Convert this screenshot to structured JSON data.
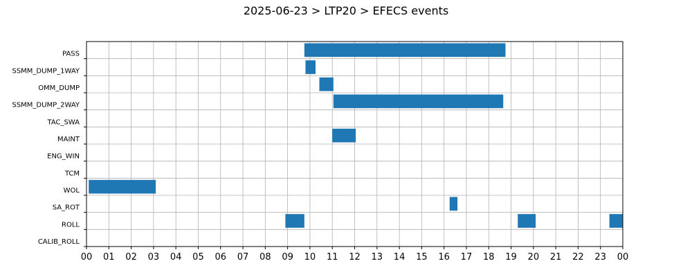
{
  "chart_data": {
    "type": "gantt",
    "title": "2025-06-23 > LTP20 > EFECS events",
    "xlabel": "",
    "ylabel": "",
    "x_ticks": [
      "00",
      "01",
      "02",
      "03",
      "04",
      "05",
      "06",
      "07",
      "08",
      "09",
      "10",
      "11",
      "12",
      "13",
      "14",
      "15",
      "16",
      "17",
      "18",
      "19",
      "20",
      "21",
      "22",
      "23",
      "00"
    ],
    "xlim_hours": [
      0,
      24
    ],
    "grid": true,
    "bar_color": "#1f77b4",
    "categories": [
      "PASS",
      "SSMM_DUMP_1WAY",
      "OMM_DUMP",
      "SSMM_DUMP_2WAY",
      "TAC_SWA",
      "MAINT",
      "ENG_WIN",
      "TCM",
      "WOL",
      "SA_ROT",
      "ROLL",
      "CALIB_ROLL"
    ],
    "events": [
      {
        "category": "PASS",
        "start_hour": 9.75,
        "end_hour": 18.75
      },
      {
        "category": "SSMM_DUMP_1WAY",
        "start_hour": 9.8,
        "end_hour": 10.25
      },
      {
        "category": "OMM_DUMP",
        "start_hour": 10.42,
        "end_hour": 11.05
      },
      {
        "category": "SSMM_DUMP_2WAY",
        "start_hour": 11.05,
        "end_hour": 18.65
      },
      {
        "category": "MAINT",
        "start_hour": 11.0,
        "end_hour": 12.05
      },
      {
        "category": "WOL",
        "start_hour": 0.1,
        "end_hour": 3.1
      },
      {
        "category": "SA_ROT",
        "start_hour": 16.25,
        "end_hour": 16.6
      },
      {
        "category": "ROLL",
        "start_hour": 8.9,
        "end_hour": 9.75
      },
      {
        "category": "ROLL",
        "start_hour": 19.3,
        "end_hour": 20.1
      },
      {
        "category": "ROLL",
        "start_hour": 23.4,
        "end_hour": 24.0
      }
    ]
  }
}
